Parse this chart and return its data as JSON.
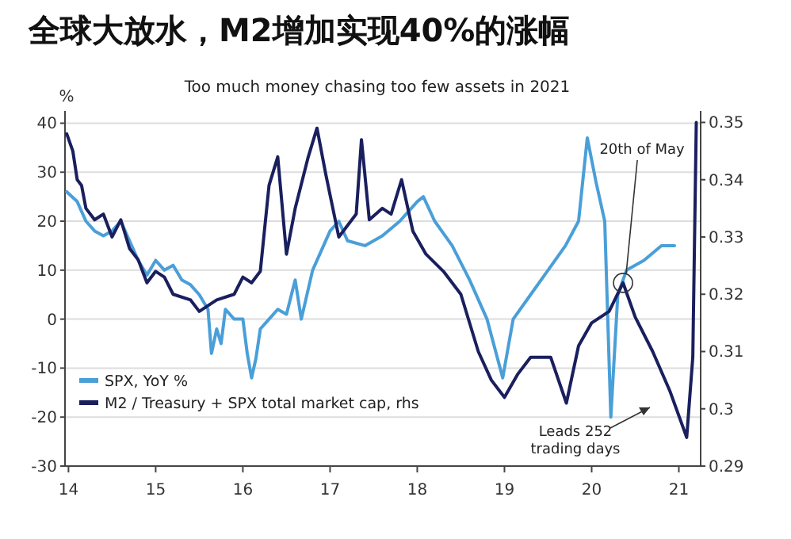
{
  "chart_data": {
    "type": "line",
    "title": "全球大放水，M2增加实现40%的涨幅",
    "subtitle": "Too much money chasing too few assets in 2021",
    "ylabel": "%",
    "xlim": [
      13.96,
      21.25
    ],
    "xticks": [
      14,
      15,
      16,
      17,
      18,
      19,
      20,
      21
    ],
    "ylim": [
      -30,
      42.5
    ],
    "yticks": [
      -30,
      -20,
      -10,
      0,
      10,
      20,
      30,
      40
    ],
    "y2lim": [
      0.29,
      0.352
    ],
    "y2ticks": [
      0.29,
      0.3,
      0.31,
      0.32,
      0.33,
      0.34,
      0.35
    ],
    "grid": "y",
    "legend": "bottom left",
    "line_style": "solid",
    "series": [
      {
        "name": "SPX, YoY %",
        "color": "#4a9fd8",
        "x": [
          13.98,
          14.1,
          14.2,
          14.3,
          14.4,
          14.5,
          14.6,
          14.7,
          14.8,
          14.9,
          15.0,
          15.1,
          15.2,
          15.3,
          15.4,
          15.5,
          15.6,
          15.64,
          15.7,
          15.75,
          15.8,
          15.9,
          16.0,
          16.05,
          16.1,
          16.15,
          16.2,
          16.3,
          16.4,
          16.5,
          16.6,
          16.67,
          16.8,
          16.9,
          17.0,
          17.1,
          17.2,
          17.4,
          17.6,
          17.8,
          18.0,
          18.07,
          18.2,
          18.4,
          18.6,
          18.8,
          18.98,
          19.1,
          19.3,
          19.5,
          19.7,
          19.85,
          19.95,
          20.05,
          20.15,
          20.22,
          20.3,
          20.4,
          20.6,
          20.8,
          20.95
        ],
        "values": [
          26,
          24,
          20,
          18,
          17,
          18,
          20,
          16,
          12,
          9,
          12,
          10,
          11,
          8,
          7,
          5,
          2,
          -7,
          -2,
          -5,
          2,
          0,
          0,
          -7,
          -12,
          -8,
          -2,
          0,
          2,
          1,
          8,
          0,
          10,
          14,
          18,
          20,
          16,
          15,
          17,
          20,
          24,
          25,
          20,
          15,
          8,
          0,
          -12,
          0,
          5,
          10,
          15,
          20,
          37,
          28,
          20,
          -20,
          5,
          10,
          12,
          15,
          15
        ]
      },
      {
        "name": "M2 / Treasury + SPX total market cap, rhs",
        "color": "#1a1f5e",
        "axis": "y2",
        "x": [
          13.98,
          14.05,
          14.1,
          14.15,
          14.2,
          14.3,
          14.4,
          14.5,
          14.6,
          14.7,
          14.8,
          14.9,
          15.0,
          15.1,
          15.2,
          15.4,
          15.5,
          15.7,
          15.9,
          16.0,
          16.1,
          16.2,
          16.3,
          16.4,
          16.5,
          16.6,
          16.75,
          16.85,
          16.95,
          17.1,
          17.3,
          17.36,
          17.45,
          17.6,
          17.7,
          17.82,
          17.95,
          18.1,
          18.3,
          18.5,
          18.7,
          18.85,
          19.0,
          19.15,
          19.3,
          19.53,
          19.71,
          19.85,
          20.0,
          20.2,
          20.36,
          20.5,
          20.7,
          20.9,
          21.09,
          21.16,
          21.2
        ],
        "values": [
          0.348,
          0.345,
          0.34,
          0.339,
          0.335,
          0.333,
          0.334,
          0.33,
          0.333,
          0.328,
          0.326,
          0.322,
          0.324,
          0.323,
          0.32,
          0.319,
          0.317,
          0.319,
          0.32,
          0.323,
          0.322,
          0.324,
          0.339,
          0.344,
          0.327,
          0.335,
          0.344,
          0.349,
          0.341,
          0.33,
          0.334,
          0.347,
          0.333,
          0.335,
          0.334,
          0.34,
          0.331,
          0.327,
          0.324,
          0.32,
          0.31,
          0.305,
          0.302,
          0.306,
          0.309,
          0.309,
          0.301,
          0.311,
          0.315,
          0.317,
          0.322,
          0.316,
          0.31,
          0.303,
          0.295,
          0.309,
          0.35
        ]
      }
    ],
    "annotations": [
      {
        "text": "20th of May",
        "x": 20.36,
        "y": 7.4
      },
      "Leads 252\ntrading days"
    ]
  }
}
